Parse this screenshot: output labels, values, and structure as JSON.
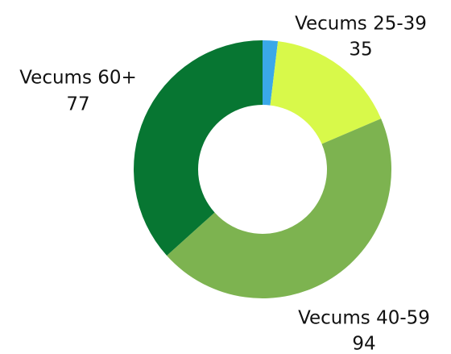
{
  "chart_data": {
    "type": "pie",
    "donut": true,
    "categories": [
      null,
      "Vecums 25-39",
      "Vecums 40-59",
      "Vecums 60+"
    ],
    "values": [
      4,
      35,
      94,
      77
    ],
    "colors": [
      "#3aa8e8",
      "#d8f94a",
      "#7db350",
      "#077632"
    ]
  }
}
